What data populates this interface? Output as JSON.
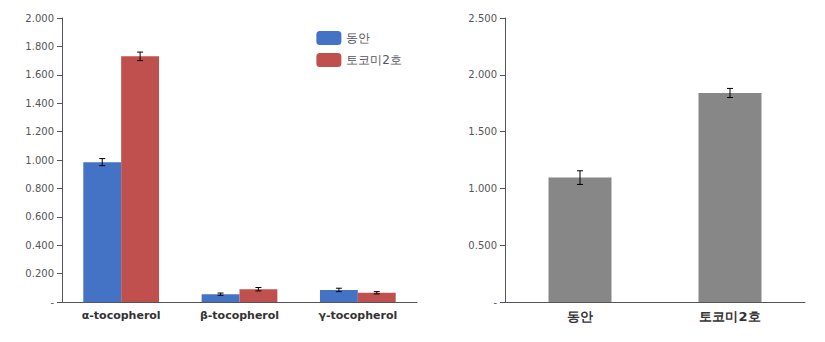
{
  "chart_data": [
    {
      "type": "bar",
      "categories": [
        "α-tocopherol",
        "β-tocopherol",
        "γ-tocopherol"
      ],
      "series": [
        {
          "name": "동안",
          "color": "#4472C4",
          "values": [
            0.985,
            0.055,
            0.085
          ],
          "errors": [
            0.025,
            0.008,
            0.012
          ]
        },
        {
          "name": "토코미2호",
          "color": "#C0504D",
          "values": [
            1.73,
            0.09,
            0.065
          ],
          "errors": [
            0.03,
            0.012,
            0.008
          ]
        }
      ],
      "ylim": [
        0,
        2.0
      ],
      "yticks": [
        {
          "value": 0,
          "label": "-"
        },
        {
          "value": 0.2,
          "label": "0.200"
        },
        {
          "value": 0.4,
          "label": "0.400"
        },
        {
          "value": 0.6,
          "label": "0.600"
        },
        {
          "value": 0.8,
          "label": "0.800"
        },
        {
          "value": 1.0,
          "label": "1.000"
        },
        {
          "value": 1.2,
          "label": "1.200"
        },
        {
          "value": 1.4,
          "label": "1.400"
        },
        {
          "value": 1.6,
          "label": "1.600"
        },
        {
          "value": 1.8,
          "label": "1.800"
        },
        {
          "value": 2.0,
          "label": "2.000"
        }
      ],
      "grid": false,
      "legend": "upper right"
    },
    {
      "type": "bar",
      "categories": [
        "동안",
        "토코미2호"
      ],
      "values": [
        1.095,
        1.84
      ],
      "errors": [
        0.06,
        0.04
      ],
      "color": "#878787",
      "ylim": [
        0,
        2.5
      ],
      "yticks": [
        {
          "value": 0,
          "label": "-"
        },
        {
          "value": 0.5,
          "label": "0.500"
        },
        {
          "value": 1.0,
          "label": "1.000"
        },
        {
          "value": 1.5,
          "label": "1.500"
        },
        {
          "value": 2.0,
          "label": "2.000"
        },
        {
          "value": 2.5,
          "label": "2.500"
        }
      ],
      "grid": false
    }
  ]
}
